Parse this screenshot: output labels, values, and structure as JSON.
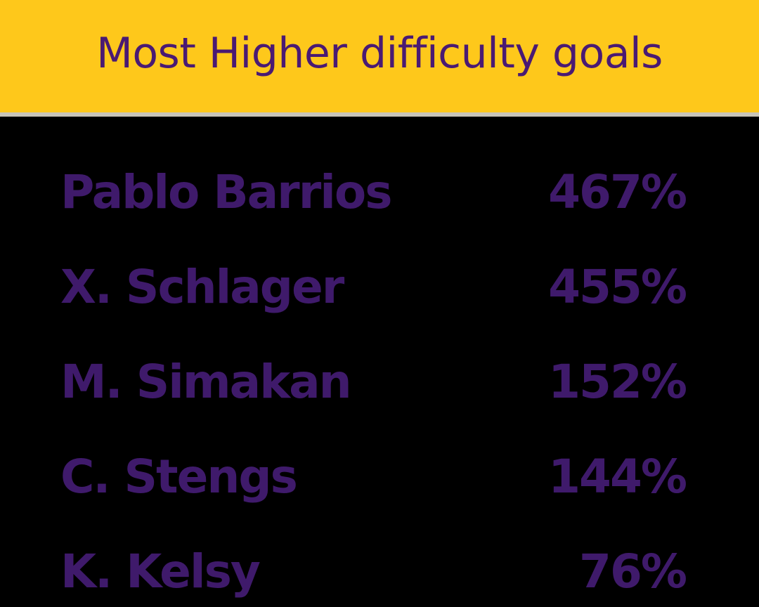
{
  "title": "Most Higher difficulty goals",
  "colors": {
    "header_background": "#FEC81B",
    "header_divider": "#C9C5B8",
    "title_text": "#4A1A73",
    "list_background": "#000000",
    "list_text": "#3F1A6B"
  },
  "players": [
    {
      "name": "Pablo Barrios",
      "value": "467%"
    },
    {
      "name": "X. Schlager",
      "value": "455%"
    },
    {
      "name": "M. Simakan",
      "value": "152%"
    },
    {
      "name": "C. Stengs",
      "value": "144%"
    },
    {
      "name": "K. Kelsy",
      "value": "76%"
    }
  ]
}
